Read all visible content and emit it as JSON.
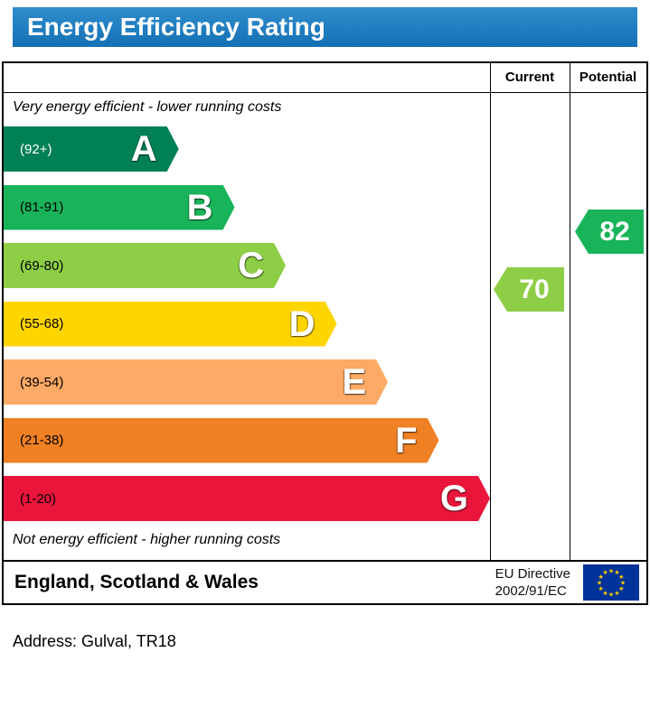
{
  "title": "Energy Efficiency Rating",
  "columns": {
    "current": "Current",
    "potential": "Potential"
  },
  "captions": {
    "top": "Very energy efficient - lower running costs",
    "bottom": "Not energy efficient - higher running costs"
  },
  "bands": [
    {
      "letter": "A",
      "range": "(92+)",
      "color": "#008054",
      "range_color": "#ffffff",
      "width_pct": 36
    },
    {
      "letter": "B",
      "range": "(81-91)",
      "color": "#19b459",
      "range_color": "#000000",
      "width_pct": 47.5
    },
    {
      "letter": "C",
      "range": "(69-80)",
      "color": "#8dce46",
      "range_color": "#000000",
      "width_pct": 58
    },
    {
      "letter": "D",
      "range": "(55-68)",
      "color": "#ffd500",
      "range_color": "#000000",
      "width_pct": 68.5
    },
    {
      "letter": "E",
      "range": "(39-54)",
      "color": "#fcaa65",
      "range_color": "#000000",
      "width_pct": 79
    },
    {
      "letter": "F",
      "range": "(21-38)",
      "color": "#ef8023",
      "range_color": "#000000",
      "width_pct": 89.5
    },
    {
      "letter": "G",
      "range": "(1-20)",
      "color": "#e9153b",
      "range_color": "#000000",
      "width_pct": 100
    }
  ],
  "ratings": {
    "current": {
      "value": "70",
      "color": "#8dce46",
      "band": "C"
    },
    "potential": {
      "value": "82",
      "color": "#19b459",
      "band": "B"
    }
  },
  "footer": {
    "region": "England, Scotland & Wales",
    "directive_line1": "EU Directive",
    "directive_line2": "2002/91/EC"
  },
  "address_line": "Address: Gulval, TR18",
  "colors": {
    "title_bar_top": "#2f8dcd",
    "title_bar_bottom": "#1470b4",
    "border": "#000000"
  },
  "chart_data": {
    "type": "bar",
    "title": "Energy Efficiency Rating",
    "categories": [
      "A",
      "B",
      "C",
      "D",
      "E",
      "F",
      "G"
    ],
    "band_ranges": [
      "92+",
      "81-91",
      "69-80",
      "55-68",
      "39-54",
      "21-38",
      "1-20"
    ],
    "band_colors": [
      "#008054",
      "#19b459",
      "#8dce46",
      "#ffd500",
      "#fcaa65",
      "#ef8023",
      "#e9153b"
    ],
    "bar_length_pct": [
      36,
      47.5,
      58,
      68.5,
      79,
      89.5,
      100
    ],
    "markers": [
      {
        "name": "Current",
        "value": 70,
        "band": "C",
        "color": "#8dce46"
      },
      {
        "name": "Potential",
        "value": 82,
        "band": "B",
        "color": "#19b459"
      }
    ],
    "annotations": [
      "Very energy efficient - lower running costs",
      "Not energy efficient - higher running costs"
    ],
    "legend_position": "none",
    "footer_text": "England, Scotland & Wales | EU Directive 2002/91/EC"
  }
}
